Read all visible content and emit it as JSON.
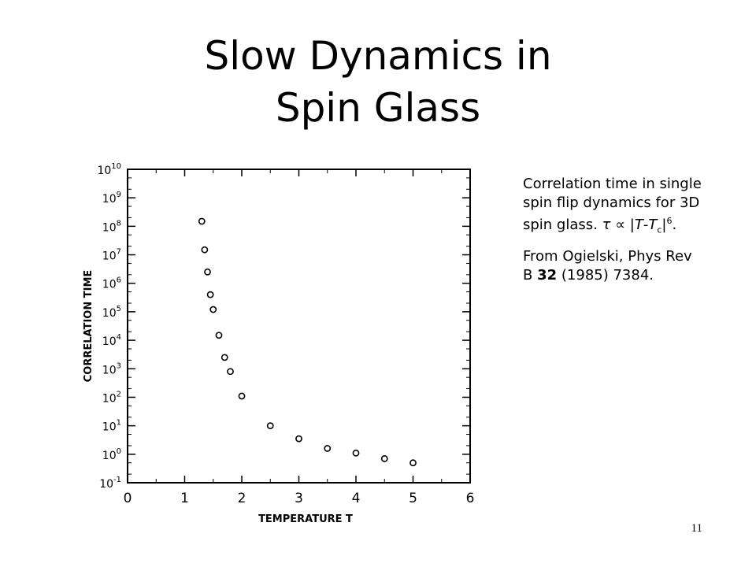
{
  "slide": {
    "title_line1": "Slow Dynamics in",
    "title_line2": "Spin Glass",
    "page_number": "11"
  },
  "caption": {
    "description": "Correlation time in single spin flip dynamics for 3D spin glass.",
    "formula_tau": "τ",
    "formula_prop": "∝",
    "formula_T": "T",
    "formula_minus": "-",
    "formula_Tc_T": "T",
    "formula_Tc_sub": "c",
    "formula_exp": "6",
    "formula_end": ".",
    "source_prefix": "From Ogielski, Phys Rev B",
    "source_volume": "32",
    "source_suffix": "(1985) 7384."
  },
  "chart_data": {
    "type": "scatter",
    "xlabel": "TEMPERATURE T",
    "ylabel": "CORRELATION TIME",
    "xlim": [
      0,
      6
    ],
    "ylim_log10": [
      -1,
      10
    ],
    "y_scale": "log",
    "x_ticks": [
      "0",
      "1",
      "2",
      "3",
      "4",
      "5",
      "6"
    ],
    "y_ticks_base": "10",
    "y_ticks_exp": [
      "-1",
      "0",
      "1",
      "2",
      "3",
      "4",
      "5",
      "6",
      "7",
      "8",
      "9",
      "10"
    ],
    "grid": false,
    "points": [
      {
        "x": 1.3,
        "y": 150000000.0
      },
      {
        "x": 1.35,
        "y": 15000000.0
      },
      {
        "x": 1.4,
        "y": 2500000.0
      },
      {
        "x": 1.45,
        "y": 400000.0
      },
      {
        "x": 1.5,
        "y": 120000.0
      },
      {
        "x": 1.6,
        "y": 15000.0
      },
      {
        "x": 1.7,
        "y": 2500.0
      },
      {
        "x": 1.8,
        "y": 800.0
      },
      {
        "x": 2.0,
        "y": 110.0
      },
      {
        "x": 2.5,
        "y": 10
      },
      {
        "x": 3.0,
        "y": 3.5
      },
      {
        "x": 3.5,
        "y": 1.6
      },
      {
        "x": 4.0,
        "y": 1.1
      },
      {
        "x": 4.5,
        "y": 0.7
      },
      {
        "x": 5.0,
        "y": 0.5
      }
    ]
  }
}
